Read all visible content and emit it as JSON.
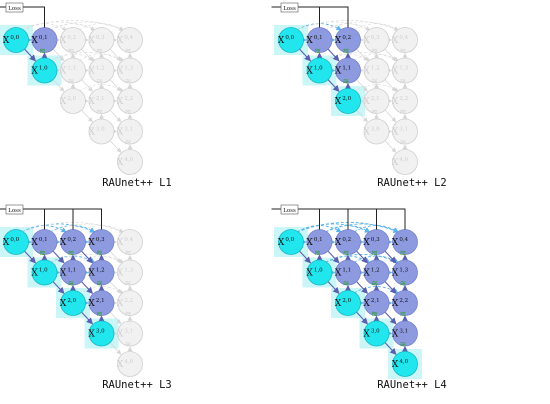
{
  "loss_label": "Loss",
  "node_labels": {
    "X00": [
      "X",
      "0,0"
    ],
    "X01": [
      "X",
      "0,1"
    ],
    "X02": [
      "X",
      "0,2"
    ],
    "X03": [
      "X",
      "0,3"
    ],
    "X04": [
      "X",
      "0,4"
    ],
    "X10": [
      "X",
      "1,0"
    ],
    "X11": [
      "X",
      "1,1"
    ],
    "X12": [
      "X",
      "1,2"
    ],
    "X13": [
      "X",
      "1,3"
    ],
    "X20": [
      "X",
      "2,0"
    ],
    "X21": [
      "X",
      "2,1"
    ],
    "X22": [
      "X",
      "2,2"
    ],
    "X30": [
      "X",
      "3,0"
    ],
    "X31": [
      "X",
      "3,1"
    ],
    "X40": [
      "X",
      "4,0"
    ]
  },
  "attention_mark": "≋",
  "colors": {
    "encoder": "#22e6ee",
    "decoder": "#8d9ae0",
    "inactive_fill": "#f1f1f1",
    "inactive_stroke": "#cfcfcf",
    "active_edge": "#5a5fb0",
    "skip_edge": "#5ab3ea",
    "attention_gate": "#2f9f3a",
    "loss_line": "#222222",
    "highlight": "#b8f3f6"
  },
  "panels": [
    {
      "caption": "RAUnet++ L1",
      "depth": 1
    },
    {
      "caption": "RAUnet++ L2",
      "depth": 2
    },
    {
      "caption": "RAUnet++ L3",
      "depth": 3
    },
    {
      "caption": "RAUnet++ L4",
      "depth": 4
    }
  ]
}
